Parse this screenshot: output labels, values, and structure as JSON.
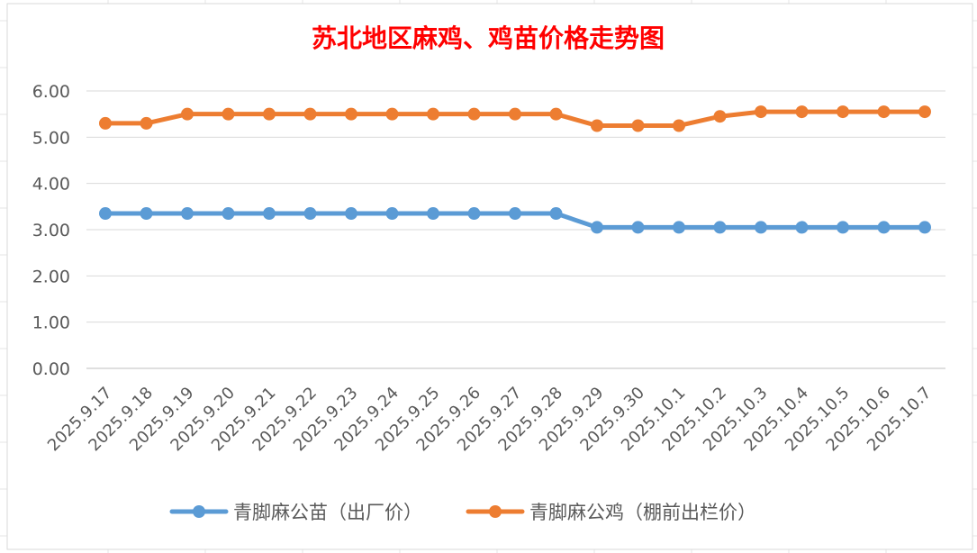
{
  "chart_data": {
    "type": "line",
    "title": "苏北地区麻鸡、鸡苗价格走势图",
    "xlabel": "",
    "ylabel": "",
    "categories": [
      "2025.9.17",
      "2025.9.18",
      "2025.9.19",
      "2025.9.20",
      "2025.9.21",
      "2025.9.22",
      "2025.9.23",
      "2025.9.24",
      "2025.9.25",
      "2025.9.26",
      "2025.9.27",
      "2025.9.28",
      "2025.9.29",
      "2025.9.30",
      "2025.10.1",
      "2025.10.2",
      "2025.10.3",
      "2025.10.4",
      "2025.10.5",
      "2025.10.6",
      "2025.10.7"
    ],
    "y_ticks": [
      "0.00",
      "1.00",
      "2.00",
      "3.00",
      "4.00",
      "5.00",
      "6.00"
    ],
    "ylim": [
      0,
      6
    ],
    "grid": true,
    "legend_position": "bottom",
    "series": [
      {
        "name": "青脚麻公苗（出厂价）",
        "color": "#5b9bd5",
        "values": [
          3.35,
          3.35,
          3.35,
          3.35,
          3.35,
          3.35,
          3.35,
          3.35,
          3.35,
          3.35,
          3.35,
          3.35,
          3.05,
          3.05,
          3.05,
          3.05,
          3.05,
          3.05,
          3.05,
          3.05,
          3.05
        ]
      },
      {
        "name": "青脚麻公鸡（棚前出栏价）",
        "color": "#ed7d31",
        "values": [
          5.3,
          5.3,
          5.5,
          5.5,
          5.5,
          5.5,
          5.5,
          5.5,
          5.5,
          5.5,
          5.5,
          5.5,
          5.25,
          5.25,
          5.25,
          5.45,
          5.55,
          5.55,
          5.55,
          5.55,
          5.55
        ]
      }
    ]
  }
}
